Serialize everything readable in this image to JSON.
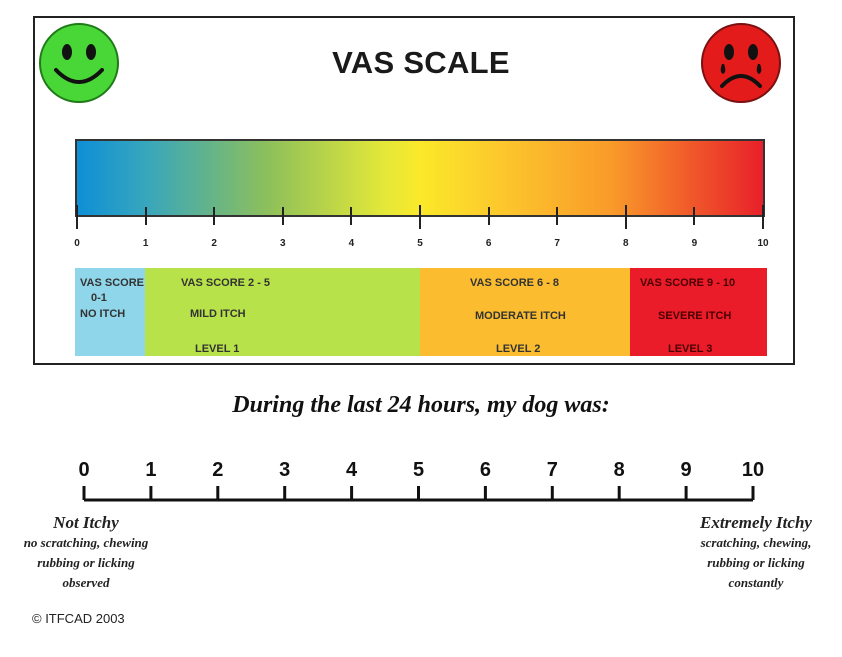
{
  "title": "VAS SCALE",
  "bar_ticks": [
    "0",
    "1",
    "2",
    "3",
    "4",
    "5",
    "6",
    "7",
    "8",
    "9",
    "10"
  ],
  "ranges": [
    {
      "lines": [
        "VAS SCORE",
        "0-1",
        "NO ITCH"
      ],
      "color": "#8fd6ea"
    },
    {
      "lines": [
        "VAS SCORE 2 - 5",
        "MILD ITCH",
        "LEVEL 1"
      ],
      "color": "#b8e24a"
    },
    {
      "lines": [
        "VAS SCORE 6 - 8",
        "MODERATE ITCH",
        "LEVEL 2"
      ],
      "color": "#fbbd2f"
    },
    {
      "lines": [
        "VAS SCORE  9 - 10",
        "SEVERE ITCH",
        "LEVEL 3"
      ],
      "color": "#ea1c2a"
    }
  ],
  "question": "During the last 24 hours, my dog was:",
  "scale_numbers": [
    "0",
    "1",
    "2",
    "3",
    "4",
    "5",
    "6",
    "7",
    "8",
    "9",
    "10"
  ],
  "left_end": {
    "heading": "Not Itchy",
    "lines": [
      "no scratching, chewing",
      "rubbing or licking",
      "observed"
    ]
  },
  "right_end": {
    "heading": "Extremely Itchy",
    "lines": [
      "scratching, chewing,",
      "rubbing or licking",
      "constantly"
    ]
  },
  "copyright": "© ITFCAD 2003",
  "icons": {
    "happy": "smiley-face-icon",
    "sad": "sad-crying-face-icon"
  },
  "colors": {
    "happy_face": "#49d637",
    "sad_face": "#e31b1b"
  }
}
